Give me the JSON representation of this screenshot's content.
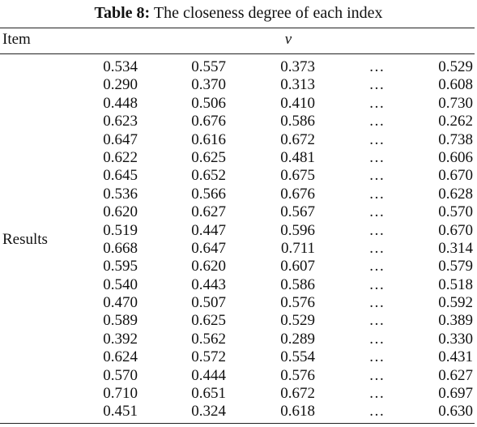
{
  "caption": {
    "label": "Table 8:",
    "text": "The closeness degree of each index"
  },
  "headers": {
    "item": "Item",
    "v": "v"
  },
  "stub_label": "Results",
  "ellipsis": "…",
  "rows": [
    [
      "0.534",
      "0.557",
      "0.373",
      "0.529"
    ],
    [
      "0.290",
      "0.370",
      "0.313",
      "0.608"
    ],
    [
      "0.448",
      "0.506",
      "0.410",
      "0.730"
    ],
    [
      "0.623",
      "0.676",
      "0.586",
      "0.262"
    ],
    [
      "0.647",
      "0.616",
      "0.672",
      "0.738"
    ],
    [
      "0.622",
      "0.625",
      "0.481",
      "0.606"
    ],
    [
      "0.645",
      "0.652",
      "0.675",
      "0.670"
    ],
    [
      "0.536",
      "0.566",
      "0.676",
      "0.628"
    ],
    [
      "0.620",
      "0.627",
      "0.567",
      "0.570"
    ],
    [
      "0.519",
      "0.447",
      "0.596",
      "0.670"
    ],
    [
      "0.668",
      "0.647",
      "0.711",
      "0.314"
    ],
    [
      "0.595",
      "0.620",
      "0.607",
      "0.579"
    ],
    [
      "0.540",
      "0.443",
      "0.586",
      "0.518"
    ],
    [
      "0.470",
      "0.507",
      "0.576",
      "0.592"
    ],
    [
      "0.589",
      "0.625",
      "0.529",
      "0.389"
    ],
    [
      "0.392",
      "0.562",
      "0.289",
      "0.330"
    ],
    [
      "0.624",
      "0.572",
      "0.554",
      "0.431"
    ],
    [
      "0.570",
      "0.444",
      "0.576",
      "0.627"
    ],
    [
      "0.710",
      "0.651",
      "0.672",
      "0.697"
    ],
    [
      "0.451",
      "0.324",
      "0.618",
      "0.630"
    ]
  ]
}
